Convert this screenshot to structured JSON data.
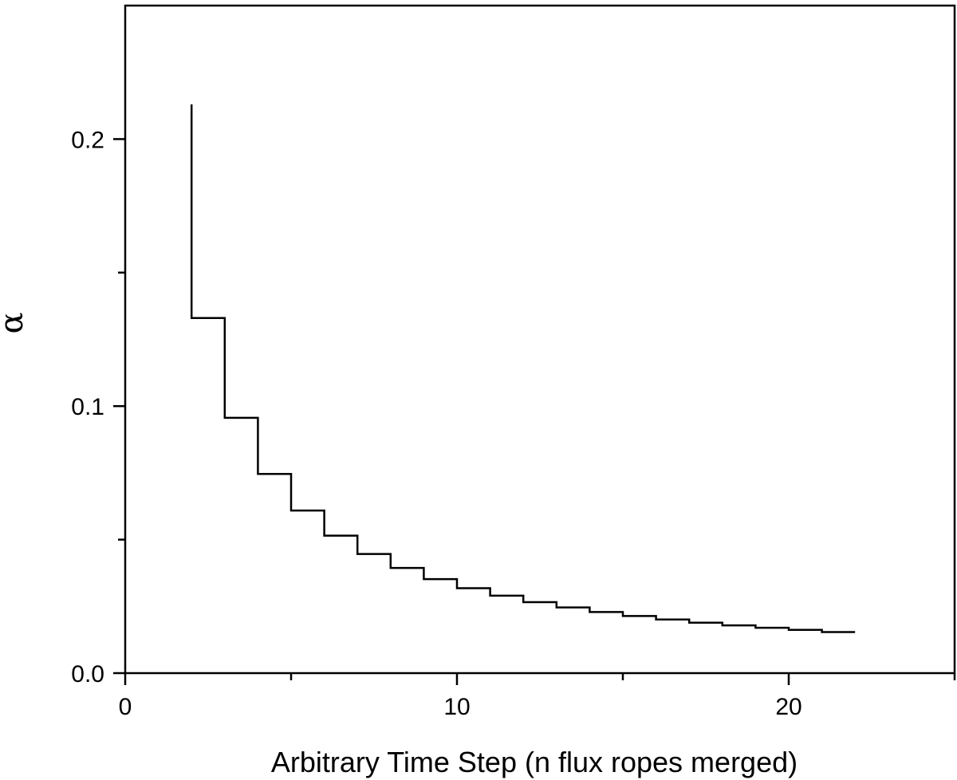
{
  "chart_data": {
    "type": "line",
    "subtype": "step",
    "title": "",
    "xlabel": "Arbitrary Time Step (n flux ropes merged)",
    "ylabel": "α",
    "xlim": [
      0,
      25
    ],
    "ylim": [
      0,
      0.25
    ],
    "x_ticks": [
      0,
      10,
      20
    ],
    "x_tick_labels": [
      "0",
      "10",
      "20"
    ],
    "x_minor_ticks": [
      5,
      15,
      25
    ],
    "y_ticks": [
      0.0,
      0.1,
      0.2
    ],
    "y_tick_labels": [
      "0.0",
      "0.1",
      "0.2"
    ],
    "y_minor_ticks": [
      0.05,
      0.15
    ],
    "grid": false,
    "series": [
      {
        "x": [
          2,
          3,
          4,
          5,
          6,
          7,
          8,
          9,
          10,
          11,
          12,
          13,
          14,
          15,
          16,
          17,
          18,
          19,
          20,
          21,
          22
        ],
        "values": [
          0.133,
          0.0956,
          0.0746,
          0.0609,
          0.0515,
          0.0446,
          0.0394,
          0.0352,
          0.0318,
          0.029,
          0.0266,
          0.0246,
          0.0229,
          0.0214,
          0.0201,
          0.0189,
          0.0179,
          0.017,
          0.0162,
          0.0154,
          0.0154
        ],
        "initial_value": 0.213
      }
    ]
  }
}
